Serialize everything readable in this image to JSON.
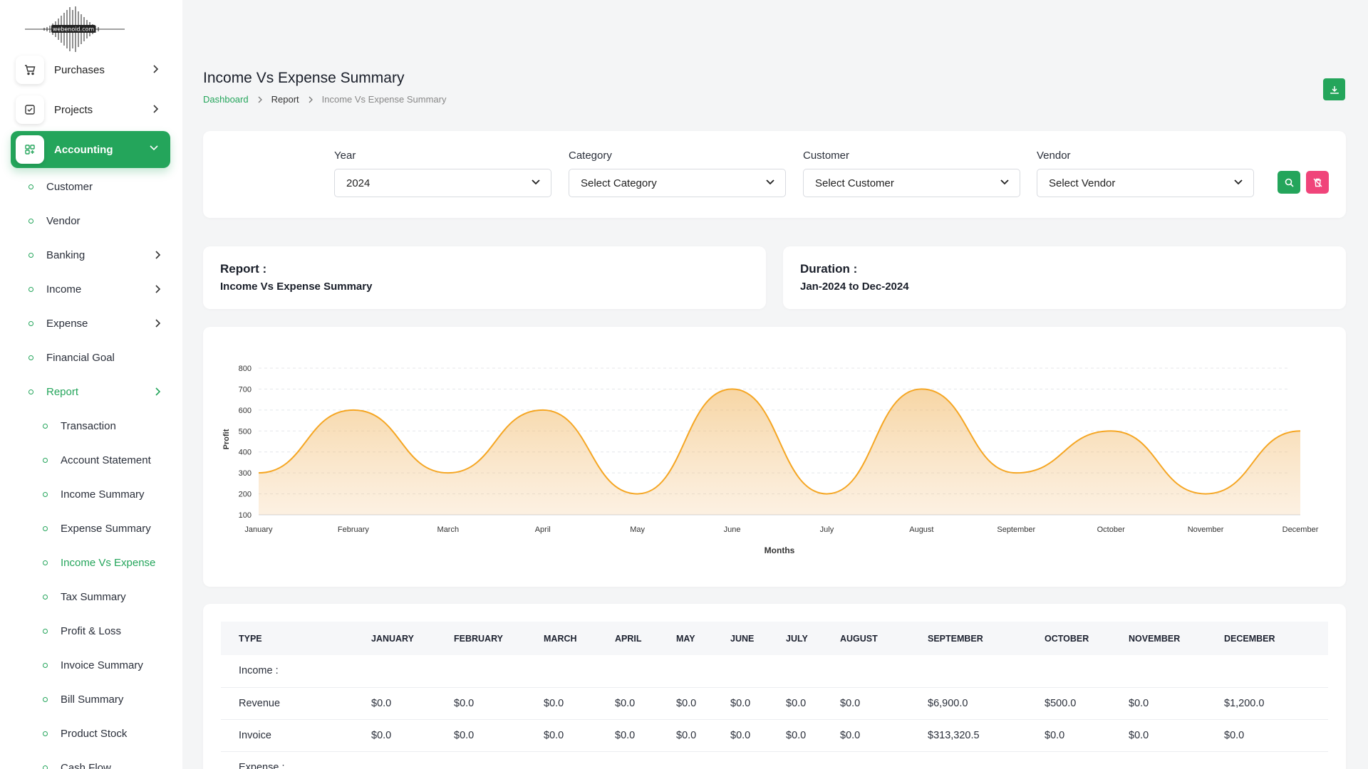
{
  "logo": {
    "text": "webenoid.com"
  },
  "sidebar": {
    "top_items": [
      {
        "label": "Purchases",
        "icon": "cart-icon"
      },
      {
        "label": "Projects",
        "icon": "checkbox-icon"
      },
      {
        "label": "Accounting",
        "icon": "grid-icon"
      }
    ],
    "accounting_items": [
      {
        "label": "Customer"
      },
      {
        "label": "Vendor"
      },
      {
        "label": "Banking"
      },
      {
        "label": "Income"
      },
      {
        "label": "Expense"
      },
      {
        "label": "Financial Goal"
      },
      {
        "label": "Report"
      }
    ],
    "report_items": [
      {
        "label": "Transaction"
      },
      {
        "label": "Account Statement"
      },
      {
        "label": "Income Summary"
      },
      {
        "label": "Expense Summary"
      },
      {
        "label": "Income Vs Expense"
      },
      {
        "label": "Tax Summary"
      },
      {
        "label": "Profit & Loss"
      },
      {
        "label": "Invoice Summary"
      },
      {
        "label": "Bill Summary"
      },
      {
        "label": "Product Stock"
      },
      {
        "label": "Cash Flow"
      }
    ]
  },
  "header": {
    "title": "Income Vs Expense Summary",
    "breadcrumb": [
      "Dashboard",
      "Report",
      "Income Vs Expense Summary"
    ]
  },
  "filters": {
    "year": {
      "label": "Year",
      "value": "2024"
    },
    "category": {
      "label": "Category",
      "value": "Select Category"
    },
    "customer": {
      "label": "Customer",
      "value": "Select Customer"
    },
    "vendor": {
      "label": "Vendor",
      "value": "Select Vendor"
    }
  },
  "report_info": {
    "report_title": "Report :",
    "report_value": "Income Vs Expense Summary",
    "duration_title": "Duration :",
    "duration_value": "Jan-2024 to Dec-2024"
  },
  "colors": {
    "accent": "#24a55b",
    "danger": "#f0447a",
    "line": "#f5a623"
  },
  "chart_data": {
    "type": "area",
    "categories": [
      "January",
      "February",
      "March",
      "April",
      "May",
      "June",
      "July",
      "August",
      "September",
      "October",
      "November",
      "December"
    ],
    "series": [
      {
        "values": [
          300,
          600,
          300,
          600,
          200,
          700,
          200,
          700,
          300,
          500,
          200,
          500
        ]
      }
    ],
    "xlabel": "Months",
    "ylabel": "Profit",
    "yticks": [
      100,
      200,
      300,
      400,
      500,
      600,
      700,
      800
    ],
    "ylim": [
      100,
      800
    ],
    "grid": true
  },
  "table": {
    "headers": [
      "TYPE",
      "JANUARY",
      "FEBRUARY",
      "MARCH",
      "APRIL",
      "MAY",
      "JUNE",
      "JULY",
      "AUGUST",
      "SEPTEMBER",
      "OCTOBER",
      "NOVEMBER",
      "DECEMBER"
    ],
    "rows": [
      {
        "section": "Income :"
      },
      {
        "cells": [
          "Revenue",
          "$0.0",
          "$0.0",
          "$0.0",
          "$0.0",
          "$0.0",
          "$0.0",
          "$0.0",
          "$0.0",
          "$6,900.0",
          "$500.0",
          "$0.0",
          "$1,200.0"
        ]
      },
      {
        "cells": [
          "Invoice",
          "$0.0",
          "$0.0",
          "$0.0",
          "$0.0",
          "$0.0",
          "$0.0",
          "$0.0",
          "$0.0",
          "$313,320.5",
          "$0.0",
          "$0.0",
          "$0.0"
        ]
      },
      {
        "section": "Expense :"
      }
    ]
  }
}
